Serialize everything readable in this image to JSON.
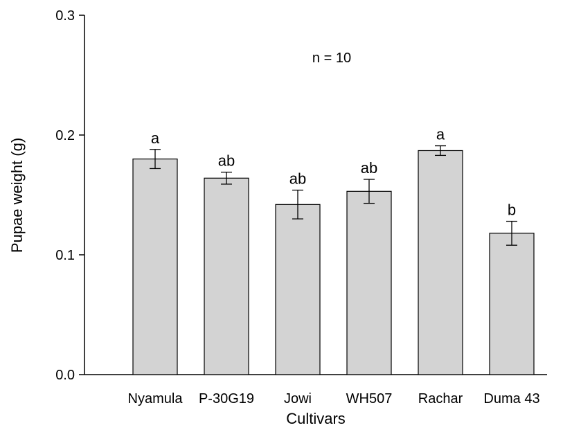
{
  "chart_data": {
    "type": "bar",
    "title": "",
    "xlabel": "Cultivars",
    "ylabel": "Pupae weight (g)",
    "ylim": [
      0,
      0.3
    ],
    "yticks": [
      "0.0",
      "0.1",
      "0.2",
      "0.3"
    ],
    "categories": [
      "Nyamula",
      "P-30G19",
      "Jowi",
      "WH507",
      "Rachar",
      "Duma 43"
    ],
    "values": [
      0.18,
      0.164,
      0.142,
      0.153,
      0.187,
      0.118
    ],
    "errors": [
      0.008,
      0.005,
      0.012,
      0.01,
      0.004,
      0.01
    ],
    "significance_letters": [
      "a",
      "ab",
      "ab",
      "ab",
      "a",
      "b"
    ],
    "annotation": "n = 10",
    "bar_color": "#d3d3d3",
    "grid": false
  }
}
